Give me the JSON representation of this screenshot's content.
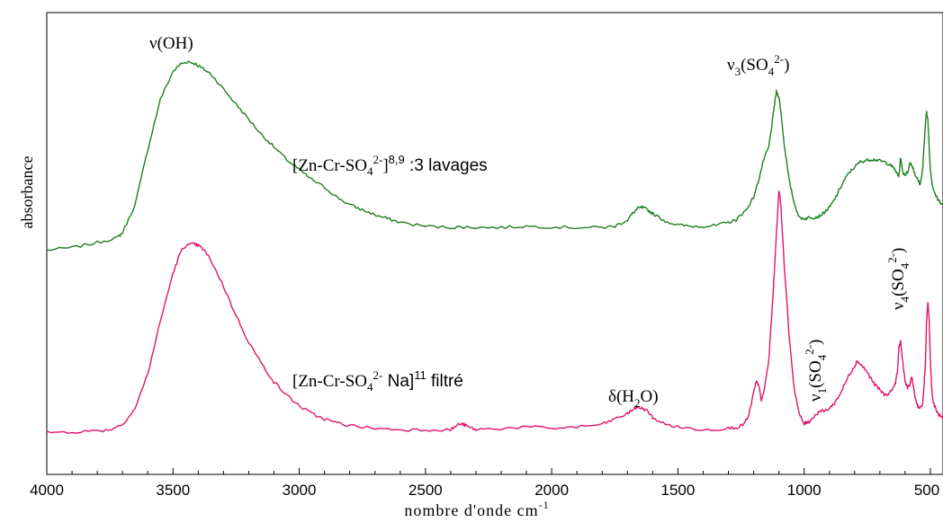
{
  "chart_data": {
    "type": "line",
    "xlabel": "nombre d'onde cm",
    "xlabel_sup": "-1",
    "ylabel": "absorbance",
    "xlim": [
      4000,
      450
    ],
    "x_reversed": true,
    "x_ticks": [
      4000,
      3500,
      3000,
      2500,
      2000,
      1500,
      1000,
      500
    ],
    "grid": false,
    "series": [
      {
        "color": "#1f7f1f",
        "label_parts": [
          "[Zn-Cr-SO",
          "4",
          "2-",
          "]",
          "8,9",
          " :3 lavages"
        ],
        "x": [
          4000,
          3900,
          3800,
          3720,
          3700,
          3650,
          3600,
          3550,
          3500,
          3470,
          3440,
          3410,
          3380,
          3350,
          3300,
          3250,
          3200,
          3150,
          3100,
          3050,
          3000,
          2950,
          2900,
          2850,
          2800,
          2750,
          2700,
          2650,
          2600,
          2500,
          2400,
          2350,
          2300,
          2200,
          2100,
          2000,
          1900,
          1800,
          1750,
          1700,
          1680,
          1660,
          1640,
          1620,
          1600,
          1550,
          1500,
          1450,
          1400,
          1350,
          1300,
          1270,
          1250,
          1230,
          1200,
          1180,
          1160,
          1140,
          1130,
          1120,
          1110,
          1100,
          1090,
          1080,
          1060,
          1040,
          1020,
          1000,
          980,
          960,
          940,
          920,
          900,
          880,
          860,
          840,
          820,
          800,
          780,
          760,
          740,
          720,
          700,
          680,
          660,
          640,
          625,
          618,
          610,
          600,
          590,
          580,
          570,
          560,
          550,
          540,
          530,
          520,
          515,
          510,
          505,
          500,
          495,
          490,
          480,
          470,
          460,
          450
        ],
        "y": [
          0.12,
          0.13,
          0.15,
          0.17,
          0.19,
          0.3,
          0.52,
          0.72,
          0.83,
          0.86,
          0.87,
          0.86,
          0.84,
          0.82,
          0.76,
          0.7,
          0.64,
          0.58,
          0.53,
          0.48,
          0.44,
          0.4,
          0.37,
          0.33,
          0.3,
          0.28,
          0.26,
          0.245,
          0.23,
          0.215,
          0.21,
          0.212,
          0.21,
          0.21,
          0.215,
          0.212,
          0.21,
          0.21,
          0.215,
          0.24,
          0.265,
          0.285,
          0.29,
          0.28,
          0.265,
          0.235,
          0.22,
          0.215,
          0.215,
          0.218,
          0.23,
          0.24,
          0.26,
          0.28,
          0.33,
          0.4,
          0.48,
          0.53,
          0.6,
          0.68,
          0.75,
          0.73,
          0.65,
          0.55,
          0.4,
          0.31,
          0.25,
          0.245,
          0.25,
          0.25,
          0.255,
          0.27,
          0.29,
          0.32,
          0.36,
          0.4,
          0.43,
          0.45,
          0.47,
          0.475,
          0.48,
          0.48,
          0.475,
          0.47,
          0.46,
          0.44,
          0.41,
          0.49,
          0.43,
          0.42,
          0.43,
          0.47,
          0.45,
          0.42,
          0.4,
          0.38,
          0.45,
          0.62,
          0.67,
          0.64,
          0.53,
          0.44,
          0.4,
          0.37,
          0.34,
          0.32,
          0.31,
          0.3
        ]
      },
      {
        "color": "#e0146e",
        "label_parts": [
          "[Zn-Cr-SO",
          "4",
          "2-",
          " Na]",
          "11",
          " filtré"
        ],
        "x": [
          4000,
          3900,
          3800,
          3750,
          3700,
          3650,
          3600,
          3550,
          3500,
          3470,
          3450,
          3420,
          3400,
          3380,
          3350,
          3300,
          3250,
          3200,
          3150,
          3100,
          3050,
          3000,
          2950,
          2900,
          2850,
          2800,
          2700,
          2600,
          2500,
          2400,
          2370,
          2350,
          2330,
          2300,
          2200,
          2100,
          2000,
          1900,
          1800,
          1750,
          1700,
          1680,
          1660,
          1640,
          1620,
          1600,
          1550,
          1500,
          1450,
          1400,
          1300,
          1260,
          1240,
          1220,
          1200,
          1190,
          1180,
          1170,
          1160,
          1140,
          1130,
          1120,
          1110,
          1100,
          1095,
          1090,
          1080,
          1060,
          1040,
          1020,
          1000,
          990,
          980,
          960,
          940,
          920,
          900,
          880,
          860,
          840,
          820,
          800,
          790,
          780,
          760,
          740,
          720,
          700,
          680,
          660,
          640,
          630,
          625,
          618,
          610,
          600,
          590,
          580,
          575,
          570,
          565,
          560,
          550,
          540,
          530,
          520,
          515,
          510,
          505,
          500,
          495,
          490,
          480,
          470,
          460,
          450
        ],
        "y": [
          0.03,
          0.032,
          0.035,
          0.04,
          0.06,
          0.12,
          0.25,
          0.45,
          0.63,
          0.71,
          0.735,
          0.74,
          0.735,
          0.72,
          0.68,
          0.58,
          0.47,
          0.37,
          0.29,
          0.22,
          0.17,
          0.13,
          0.1,
          0.08,
          0.065,
          0.055,
          0.045,
          0.04,
          0.04,
          0.04,
          0.06,
          0.06,
          0.05,
          0.04,
          0.045,
          0.05,
          0.045,
          0.05,
          0.06,
          0.08,
          0.1,
          0.115,
          0.125,
          0.12,
          0.11,
          0.085,
          0.06,
          0.05,
          0.045,
          0.04,
          0.045,
          0.05,
          0.06,
          0.09,
          0.18,
          0.22,
          0.21,
          0.15,
          0.18,
          0.3,
          0.45,
          0.6,
          0.78,
          0.94,
          0.92,
          0.85,
          0.68,
          0.4,
          0.2,
          0.1,
          0.06,
          0.07,
          0.07,
          0.09,
          0.11,
          0.11,
          0.12,
          0.14,
          0.17,
          0.21,
          0.25,
          0.28,
          0.3,
          0.29,
          0.27,
          0.24,
          0.21,
          0.19,
          0.17,
          0.18,
          0.21,
          0.26,
          0.35,
          0.37,
          0.3,
          0.22,
          0.2,
          0.21,
          0.24,
          0.22,
          0.19,
          0.16,
          0.13,
          0.12,
          0.14,
          0.28,
          0.45,
          0.52,
          0.46,
          0.3,
          0.2,
          0.15,
          0.12,
          0.1,
          0.09,
          0.08
        ]
      }
    ],
    "annotations": [
      {
        "name": "nu-oh",
        "base": "ν(OH)",
        "sub": "",
        "sup": "",
        "tail": "",
        "rotate": false
      },
      {
        "name": "nu3-so4",
        "base": "ν",
        "sub": "3",
        "mid": "(SO",
        "sub2": "4",
        "sup": "2-",
        "tail": ")",
        "rotate": false
      },
      {
        "name": "delta-h2o",
        "base": "δ(H",
        "sub": "2",
        "mid": "O)",
        "sub2": "",
        "sup": "",
        "tail": "",
        "rotate": false
      },
      {
        "name": "nu1-so4",
        "base": "ν",
        "sub": "1",
        "mid": "(SO",
        "sub2": "4",
        "sup": "2-",
        "tail": ")",
        "rotate": true
      },
      {
        "name": "nu4-so4",
        "base": "ν",
        "sub": "4",
        "mid": "(SO",
        "sub2": "4",
        "sup": "2-",
        "tail": ")",
        "rotate": true
      }
    ]
  }
}
